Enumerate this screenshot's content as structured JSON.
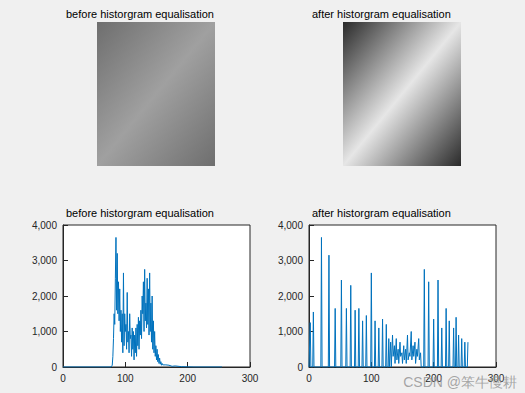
{
  "chart_data": [
    {
      "type": "image",
      "title": "before historgram equalisation"
    },
    {
      "type": "image",
      "title": "after historgram equalisation"
    },
    {
      "type": "line",
      "title": "before historgram equalisation",
      "color": "#0072bd",
      "x": [
        0,
        77,
        78,
        79,
        80,
        81,
        82,
        83,
        84,
        85,
        86,
        87,
        88,
        89,
        90,
        91,
        92,
        93,
        94,
        95,
        96,
        97,
        98,
        99,
        100,
        101,
        102,
        103,
        104,
        105,
        106,
        107,
        108,
        109,
        110,
        111,
        112,
        113,
        114,
        115,
        116,
        117,
        118,
        119,
        120,
        121,
        122,
        123,
        124,
        125,
        126,
        127,
        128,
        129,
        130,
        131,
        132,
        133,
        134,
        135,
        136,
        137,
        138,
        139,
        140,
        141,
        142,
        143,
        144,
        145,
        146,
        147,
        148,
        149,
        150,
        151,
        152,
        153,
        154,
        155,
        156,
        157,
        158,
        159,
        160,
        165,
        170,
        175,
        180,
        190,
        200,
        210,
        255
      ],
      "values": [
        0,
        0,
        0,
        50,
        300,
        800,
        1500,
        1200,
        2500,
        3650,
        1600,
        3200,
        1500,
        2400,
        1300,
        2200,
        1000,
        1600,
        700,
        1500,
        400,
        2650,
        600,
        1500,
        1000,
        1200,
        500,
        2100,
        700,
        1000,
        400,
        1500,
        800,
        900,
        300,
        1100,
        500,
        1000,
        200,
        900,
        400,
        1100,
        300,
        1200,
        600,
        1400,
        500,
        1300,
        900,
        1600,
        800,
        2000,
        1500,
        2400,
        1000,
        2750,
        1300,
        1800,
        1100,
        2500,
        1200,
        2200,
        900,
        2650,
        1000,
        1800,
        700,
        2000,
        500,
        1300,
        400,
        1000,
        300,
        600,
        200,
        500,
        150,
        350,
        100,
        250,
        80,
        150,
        50,
        100,
        60,
        60,
        50,
        20,
        30,
        10,
        5,
        0,
        0
      ],
      "xlim": [
        0,
        300
      ],
      "xticks": [
        0,
        100,
        200,
        300
      ],
      "ylim": [
        0,
        4000
      ],
      "yticks": [
        0,
        1000,
        2000,
        3000,
        4000
      ]
    },
    {
      "type": "line",
      "title": "after historgram equalisation",
      "color": "#0072bd",
      "x": [
        0,
        1,
        2,
        3,
        6,
        7,
        8,
        19,
        20,
        21,
        31,
        32,
        33,
        41,
        42,
        43,
        51,
        52,
        53,
        59,
        60,
        61,
        66,
        67,
        68,
        73,
        74,
        75,
        79,
        80,
        81,
        85,
        86,
        87,
        91,
        92,
        93,
        99,
        100,
        101,
        105,
        106,
        107,
        111,
        112,
        113,
        117,
        118,
        119,
        123,
        124,
        125,
        127,
        128,
        129,
        131,
        132,
        134,
        135,
        137,
        138,
        140,
        141,
        143,
        144,
        146,
        147,
        149,
        150,
        152,
        153,
        155,
        156,
        158,
        159,
        161,
        162,
        164,
        165,
        167,
        168,
        170,
        171,
        173,
        174,
        176,
        177,
        179,
        180,
        184,
        185,
        186,
        191,
        192,
        193,
        199,
        200,
        201,
        206,
        207,
        208,
        212,
        213,
        214,
        219,
        220,
        221,
        224,
        225,
        226,
        231,
        232,
        233,
        235,
        236,
        237,
        239,
        240,
        241,
        244,
        245,
        246,
        249,
        250,
        251,
        254,
        255
      ],
      "values": [
        0,
        0,
        1250,
        0,
        0,
        1550,
        0,
        0,
        3650,
        0,
        0,
        3150,
        0,
        0,
        1650,
        0,
        0,
        2450,
        0,
        0,
        1650,
        0,
        0,
        2300,
        0,
        0,
        1600,
        0,
        0,
        1650,
        0,
        0,
        1300,
        0,
        0,
        1450,
        0,
        0,
        2650,
        0,
        0,
        1300,
        0,
        0,
        1100,
        0,
        0,
        1350,
        0,
        0,
        1200,
        0,
        0,
        800,
        0,
        700,
        0,
        900,
        300,
        600,
        100,
        800,
        200,
        500,
        100,
        700,
        300,
        400,
        100,
        600,
        200,
        500,
        100,
        900,
        200,
        400,
        300,
        1000,
        200,
        600,
        300,
        700,
        100,
        500,
        300,
        800,
        200,
        400,
        0,
        0,
        2750,
        0,
        0,
        2400,
        0,
        0,
        1350,
        0,
        0,
        2450,
        0,
        0,
        1100,
        0,
        0,
        1650,
        0,
        0,
        1300,
        0,
        0,
        1100,
        0,
        0,
        1400,
        0,
        0,
        900,
        0,
        0,
        800,
        0,
        0,
        700,
        0,
        0,
        700
      ],
      "xlim": [
        0,
        300
      ],
      "xticks": [
        0,
        100,
        200,
        300
      ],
      "ylim": [
        0,
        4000
      ],
      "yticks": [
        0,
        1000,
        2000,
        3000,
        4000
      ]
    }
  ],
  "watermark": "CSDN @笨牛慢耕"
}
